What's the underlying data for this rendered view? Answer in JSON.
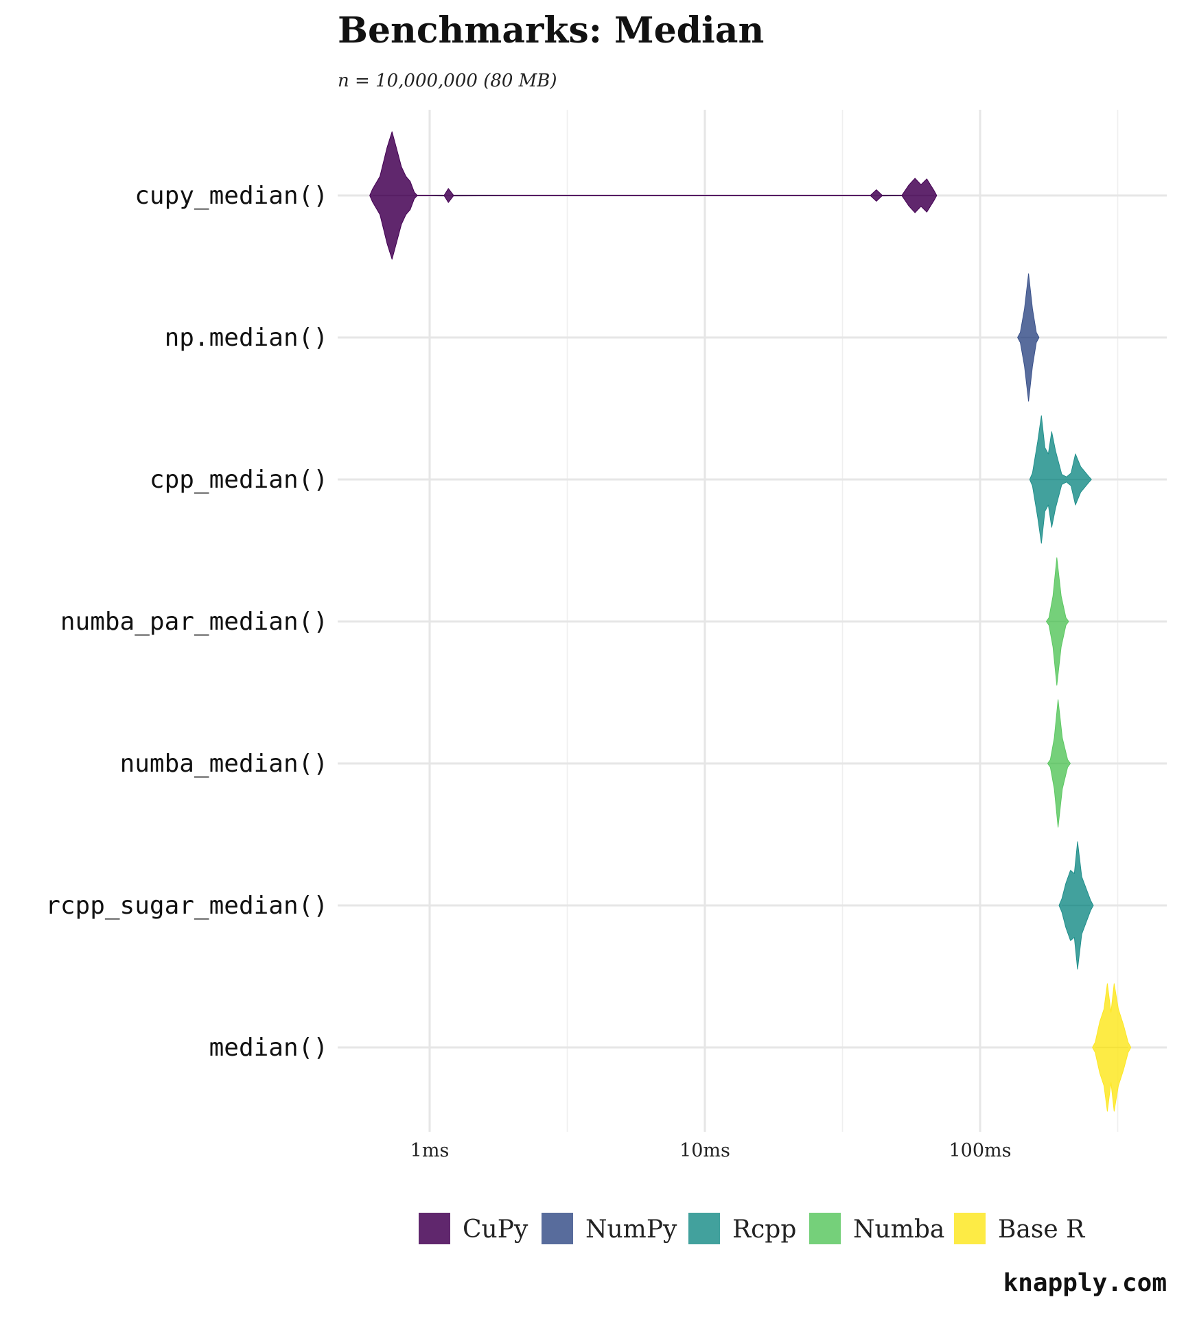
{
  "chart_data": {
    "type": "violin",
    "title": "Benchmarks: Median",
    "subtitle": "n = 10,000,000 (80 MB)",
    "xlabel": "",
    "ylabel": "",
    "x_scale": "log10",
    "x_unit": "ms",
    "xlim": [
      0.35,
      1000
    ],
    "x_ticks": [
      {
        "value": 1,
        "label": "1ms"
      },
      {
        "value": 10,
        "label": "10ms"
      },
      {
        "value": 100,
        "label": "100ms"
      }
    ],
    "grid": true,
    "legend_position": "bottom",
    "categories": [
      "cupy_median()",
      "np.median()",
      "cpp_median()",
      "numba_par_median()",
      "numba_median()",
      "rcpp_sugar_median()",
      "median()"
    ],
    "groups": [
      {
        "name": "CuPy",
        "color": "#440154"
      },
      {
        "name": "NumPy",
        "color": "#3B528B"
      },
      {
        "name": "Rcpp",
        "color": "#21908C"
      },
      {
        "name": "Numba",
        "color": "#5DC863"
      },
      {
        "name": "Base R",
        "color": "#FDE725"
      }
    ],
    "series": [
      {
        "category": "cupy_median()",
        "group": "CuPy",
        "range_ms": [
          0.62,
          68
        ],
        "density": [
          [
            0.62,
            0.1
          ],
          [
            0.66,
            0.3
          ],
          [
            0.7,
            0.75
          ],
          [
            0.73,
            1.0
          ],
          [
            0.76,
            0.72
          ],
          [
            0.79,
            0.45
          ],
          [
            0.82,
            0.3
          ],
          [
            0.85,
            0.22
          ],
          [
            0.88,
            0.05
          ],
          [
            0.9,
            0.004
          ],
          [
            1.0,
            0.004
          ],
          [
            1.13,
            0.006
          ],
          [
            1.17,
            0.11
          ],
          [
            1.22,
            0.006
          ],
          [
            2.0,
            0.004
          ],
          [
            40,
            0.004
          ],
          [
            42,
            0.09
          ],
          [
            44,
            0.006
          ],
          [
            52,
            0.004
          ],
          [
            55,
            0.16
          ],
          [
            58,
            0.27
          ],
          [
            61,
            0.17
          ],
          [
            64,
            0.26
          ],
          [
            68,
            0.08
          ]
        ]
      },
      {
        "category": "np.median()",
        "group": "NumPy",
        "range_ms": [
          140,
          160
        ],
        "density": [
          [
            140,
            0.08
          ],
          [
            145,
            0.45
          ],
          [
            150,
            1.0
          ],
          [
            155,
            0.45
          ],
          [
            160,
            0.08
          ]
        ]
      },
      {
        "category": "cpp_median()",
        "group": "Rcpp",
        "range_ms": [
          155,
          248
        ],
        "density": [
          [
            155,
            0.1
          ],
          [
            162,
            0.6
          ],
          [
            167,
            1.0
          ],
          [
            172,
            0.5
          ],
          [
            177,
            0.4
          ],
          [
            182,
            0.75
          ],
          [
            188,
            0.45
          ],
          [
            198,
            0.08
          ],
          [
            206,
            0.04
          ],
          [
            214,
            0.1
          ],
          [
            222,
            0.4
          ],
          [
            232,
            0.2
          ],
          [
            248,
            0.05
          ]
        ]
      },
      {
        "category": "numba_par_median()",
        "group": "Numba",
        "range_ms": [
          178,
          205
        ],
        "density": [
          [
            178,
            0.06
          ],
          [
            184,
            0.4
          ],
          [
            190,
            1.0
          ],
          [
            197,
            0.4
          ],
          [
            205,
            0.06
          ]
        ]
      },
      {
        "category": "numba_median()",
        "group": "Numba",
        "range_ms": [
          180,
          208
        ],
        "density": [
          [
            180,
            0.06
          ],
          [
            186,
            0.4
          ],
          [
            192,
            1.0
          ],
          [
            199,
            0.4
          ],
          [
            208,
            0.06
          ]
        ]
      },
      {
        "category": "rcpp_sugar_median()",
        "group": "Rcpp",
        "range_ms": [
          198,
          252
        ],
        "density": [
          [
            198,
            0.1
          ],
          [
            205,
            0.35
          ],
          [
            213,
            0.55
          ],
          [
            220,
            0.5
          ],
          [
            226,
            1.0
          ],
          [
            234,
            0.45
          ],
          [
            252,
            0.08
          ]
        ]
      },
      {
        "category": "median()",
        "group": "Base R",
        "range_ms": [
          262,
          345
        ],
        "density": [
          [
            262,
            0.08
          ],
          [
            272,
            0.4
          ],
          [
            282,
            0.6
          ],
          [
            290,
            1.0
          ],
          [
            299,
            0.55
          ],
          [
            307,
            1.0
          ],
          [
            318,
            0.6
          ],
          [
            332,
            0.35
          ],
          [
            345,
            0.08
          ]
        ]
      }
    ],
    "caption": "knapply.com"
  }
}
